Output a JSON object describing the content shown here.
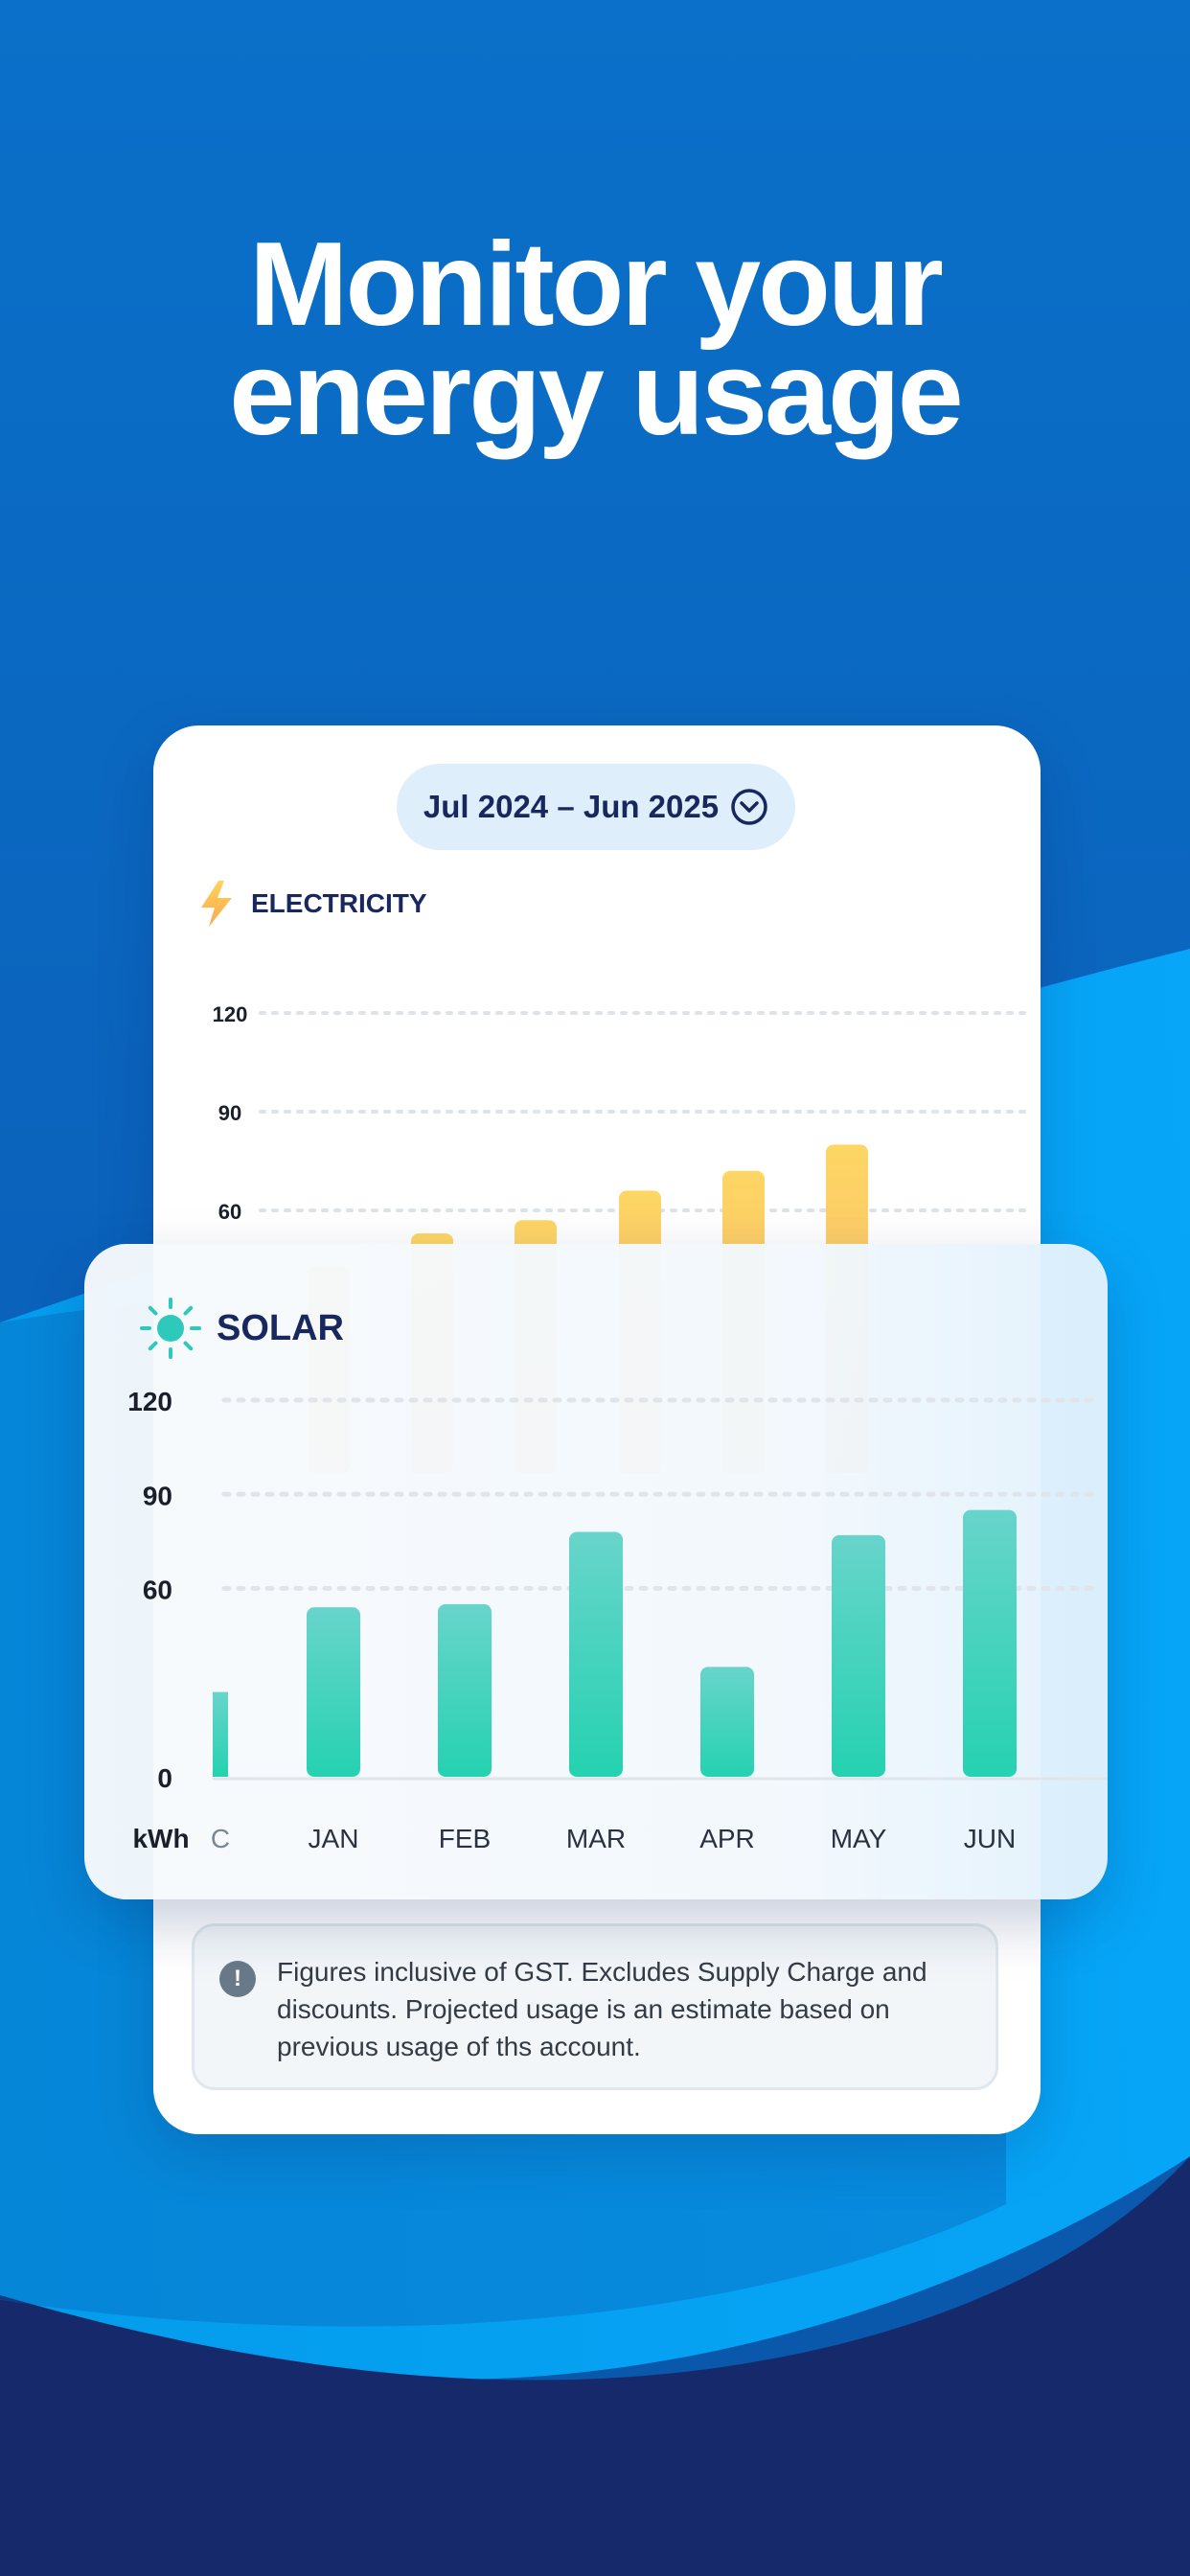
{
  "headline": {
    "line1": "Monitor your",
    "line2": "energy usage"
  },
  "period_selector": {
    "label": "Jul 2024 – Jun 2025",
    "icon": "chevron-down-circle-icon"
  },
  "electricity": {
    "label": "ELECTRICITY",
    "icon": "lightning-bolt-icon"
  },
  "solar": {
    "label": "SOLAR",
    "icon": "sun-icon"
  },
  "note": {
    "icon": "exclamation-circle-icon",
    "text": "Figures inclusive of GST. Excludes Supply Charge and discounts. Projected usage is an estimate based on previous usage of ths account."
  },
  "colors": {
    "background": "#0a66c2",
    "navy": "#18285f",
    "electricity_top": "#fdd664",
    "electricity_bottom": "#fcb56e",
    "solar_top": "#68d4cb",
    "solar_bottom": "#25d2b0"
  },
  "chart_data": [
    {
      "type": "bar",
      "series": [
        {
          "name": "ELECTRICITY",
          "values": [
            43,
            53,
            57,
            66,
            72,
            80
          ]
        }
      ],
      "y_ticks": [
        "120",
        "90",
        "60"
      ],
      "ylim": [
        0,
        120
      ],
      "grid": true
    },
    {
      "type": "bar",
      "categories": [
        "C",
        "JAN",
        "FEB",
        "MAR",
        "APR",
        "MAY",
        "JUN"
      ],
      "series": [
        {
          "name": "SOLAR",
          "values": [
            27,
            54,
            55,
            78,
            35,
            77,
            85
          ]
        }
      ],
      "y_ticks": [
        "120",
        "90",
        "60",
        "0"
      ],
      "ylabel": "kWh",
      "ylim": [
        0,
        120
      ],
      "grid": true
    }
  ]
}
